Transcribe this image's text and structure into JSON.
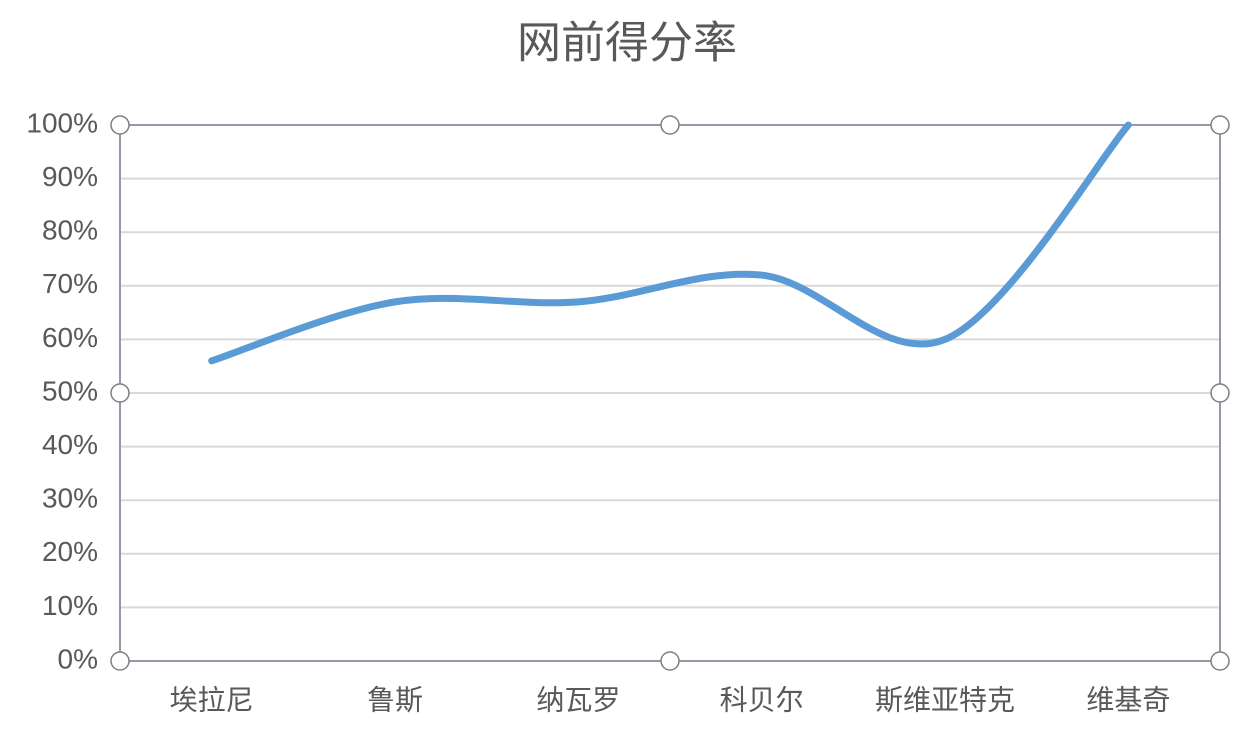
{
  "chart_data": {
    "type": "line",
    "title": "网前得分率",
    "categories": [
      "埃拉尼",
      "鲁斯",
      "纳瓦罗",
      "科贝尔",
      "斯维亚特克",
      "维基奇"
    ],
    "series": [
      {
        "name": "网前得分率",
        "color": "#5b9bd5",
        "values": [
          56,
          67,
          67,
          72,
          60,
          100
        ]
      }
    ],
    "ylim": [
      0,
      100
    ],
    "yticks": [
      {
        "value": 0,
        "label": "0%"
      },
      {
        "value": 10,
        "label": "10%"
      },
      {
        "value": 20,
        "label": "20%"
      },
      {
        "value": 30,
        "label": "30%"
      },
      {
        "value": 40,
        "label": "40%"
      },
      {
        "value": 50,
        "label": "50%"
      },
      {
        "value": 60,
        "label": "60%"
      },
      {
        "value": 70,
        "label": "70%"
      },
      {
        "value": 80,
        "label": "80%"
      },
      {
        "value": 90,
        "label": "90%"
      },
      {
        "value": 100,
        "label": "100%"
      }
    ],
    "grid": true,
    "smooth": true
  }
}
